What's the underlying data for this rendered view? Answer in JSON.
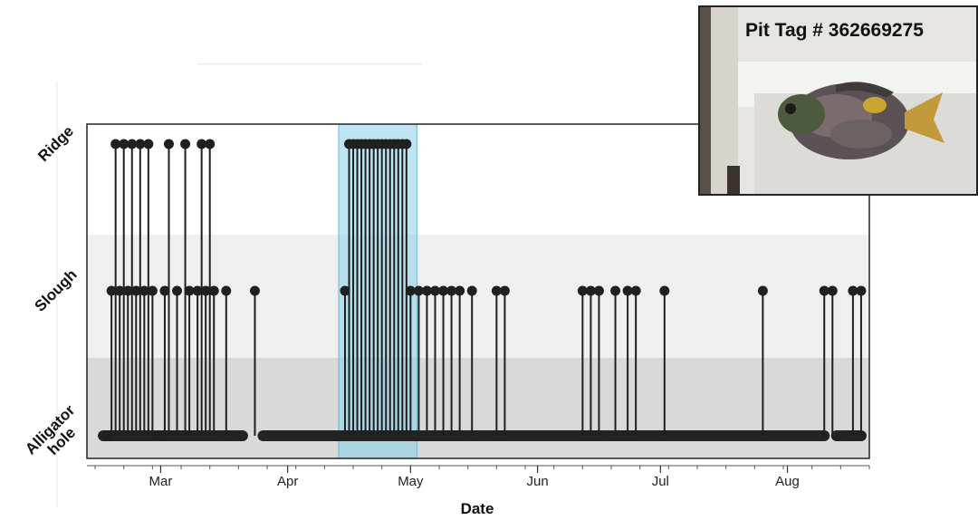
{
  "inset": {
    "caption": "Pit Tag # 362669275"
  },
  "chart_data": {
    "type": "scatter",
    "xlabel": "Date",
    "ylabel": "",
    "y_categories": [
      "Alligator hole",
      "Slough",
      "Ridge"
    ],
    "y_category_lines": [
      [
        "Alligator",
        "hole"
      ],
      [
        "Slough"
      ],
      [
        "Ridge"
      ]
    ],
    "x_ticks": [
      "Mar",
      "Apr",
      "May",
      "Jun",
      "Jul",
      "Aug"
    ],
    "xlim": [
      "Feb 11",
      "Aug 21"
    ],
    "grid": false,
    "highlight": {
      "from": "Apr 15",
      "to": "May 1",
      "color": "#87cfe8"
    },
    "band_colors": [
      "#d9d9d9",
      "#efefef",
      "#ffffff"
    ],
    "series": [
      {
        "values": [
          [
            "Feb 16",
            0
          ],
          [
            "Feb 17",
            1
          ],
          [
            "Feb 18",
            2
          ],
          [
            "Feb 19",
            1
          ],
          [
            "Feb 20",
            2
          ],
          [
            "Feb 21",
            1
          ],
          [
            "Feb 22",
            2
          ],
          [
            "Feb 23",
            1
          ],
          [
            "Feb 24",
            2
          ],
          [
            "Feb 25",
            1
          ],
          [
            "Feb 26",
            2
          ],
          [
            "Feb 27",
            1
          ],
          [
            "Feb 28",
            0
          ],
          [
            "Mar 2",
            1
          ],
          [
            "Mar 3",
            2
          ],
          [
            "Mar 5",
            1
          ],
          [
            "Mar 7",
            2
          ],
          [
            "Mar 8",
            1
          ],
          [
            "Mar 10",
            1
          ],
          [
            "Mar 11",
            2
          ],
          [
            "Mar 12",
            1
          ],
          [
            "Mar 13",
            2
          ],
          [
            "Mar 14",
            1
          ],
          [
            "Mar 17",
            1
          ],
          [
            "Mar 24",
            1
          ],
          [
            "Apr 15",
            1
          ],
          [
            "Apr 16",
            2
          ],
          [
            "Apr 17",
            2
          ],
          [
            "Apr 18",
            2
          ],
          [
            "Apr 19",
            2
          ],
          [
            "Apr 20",
            2
          ],
          [
            "Apr 21",
            2
          ],
          [
            "Apr 22",
            2
          ],
          [
            "Apr 23",
            2
          ],
          [
            "Apr 24",
            2
          ],
          [
            "Apr 25",
            2
          ],
          [
            "Apr 26",
            2
          ],
          [
            "Apr 27",
            2
          ],
          [
            "Apr 28",
            2
          ],
          [
            "Apr 29",
            2
          ],
          [
            "Apr 30",
            2
          ],
          [
            "May 1",
            1
          ],
          [
            "May 3",
            1
          ],
          [
            "May 5",
            1
          ],
          [
            "May 7",
            1
          ],
          [
            "May 9",
            1
          ],
          [
            "May 11",
            1
          ],
          [
            "May 13",
            1
          ],
          [
            "May 16",
            1
          ],
          [
            "May 22",
            1
          ],
          [
            "May 24",
            1
          ],
          [
            "Jun 12",
            1
          ],
          [
            "Jun 14",
            1
          ],
          [
            "Jun 16",
            1
          ],
          [
            "Jun 20",
            1
          ],
          [
            "Jun 23",
            1
          ],
          [
            "Jun 25",
            1
          ],
          [
            "Jul 2",
            1
          ],
          [
            "Jul 26",
            1
          ],
          [
            "Aug 10",
            1
          ],
          [
            "Aug 12",
            1
          ],
          [
            "Aug 17",
            1
          ],
          [
            "Aug 19",
            1
          ]
        ]
      }
    ]
  }
}
